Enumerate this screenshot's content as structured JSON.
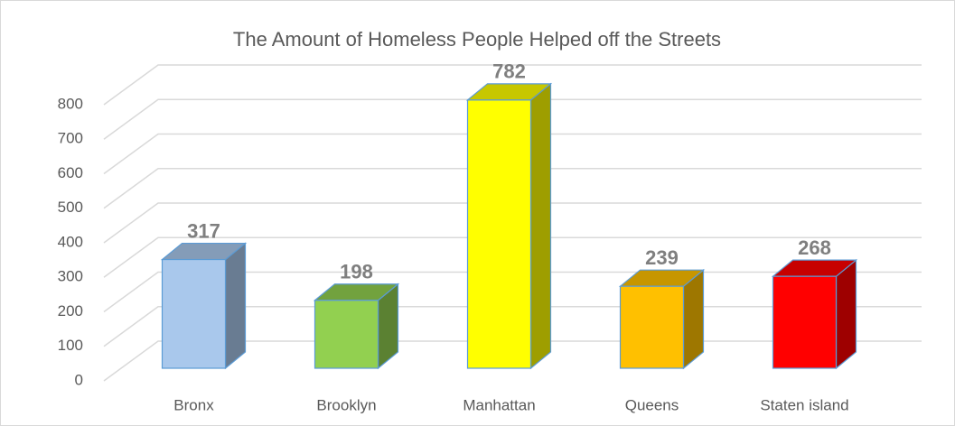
{
  "chart_data": {
    "type": "bar3d",
    "title": "The Amount of Homeless People Helped off the Streets",
    "categories": [
      "Bronx",
      "Brooklyn",
      "Manhattan",
      "Queens",
      "Staten island"
    ],
    "values": [
      317,
      198,
      782,
      239,
      268
    ],
    "colors": [
      "#a9c8ec",
      "#92d050",
      "#ffff00",
      "#ffc000",
      "#ff0000"
    ],
    "ylim": [
      0,
      800
    ],
    "yticks": [
      0,
      100,
      200,
      300,
      400,
      500,
      600,
      700,
      800
    ],
    "grid": true
  }
}
